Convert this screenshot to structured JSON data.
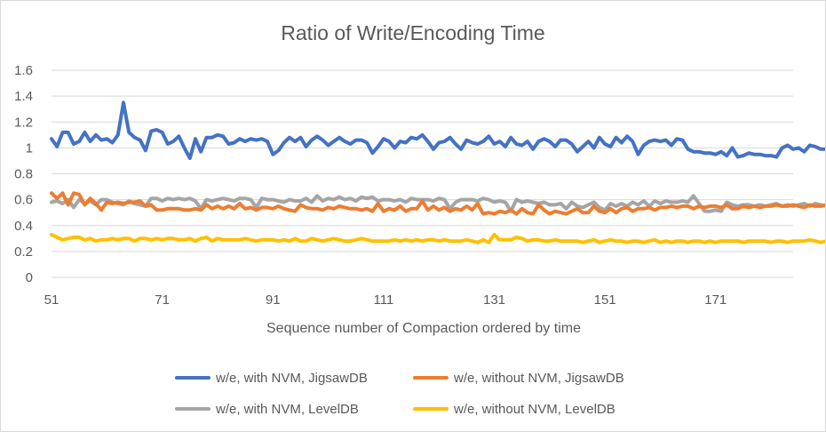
{
  "chart_data": {
    "type": "line",
    "title": "Ratio of Write/Encoding Time",
    "xlabel": "Sequence number of Compaction ordered by time",
    "ylabel": "",
    "x_start": 51,
    "x_end": 185,
    "xticks": [
      "51",
      "71",
      "91",
      "111",
      "131",
      "151",
      "171"
    ],
    "yticks": [
      "0",
      "0.2",
      "0.4",
      "0.6",
      "0.8",
      "1",
      "1.2",
      "1.4",
      "1.6"
    ],
    "ylim": [
      0,
      1.6
    ],
    "grid": true,
    "legend_position": "bottom",
    "series": [
      {
        "name": "w/e, with NVM, JigsawDB",
        "color": "#4472C4",
        "values": [
          1.07,
          1.01,
          1.12,
          1.12,
          1.03,
          1.05,
          1.12,
          1.05,
          1.1,
          1.06,
          1.07,
          1.04,
          1.1,
          1.35,
          1.12,
          1.08,
          1.06,
          0.98,
          1.13,
          1.14,
          1.12,
          1.03,
          1.05,
          1.09,
          1.0,
          0.92,
          1.07,
          0.97,
          1.08,
          1.08,
          1.1,
          1.09,
          1.03,
          1.04,
          1.07,
          1.05,
          1.07,
          1.06,
          1.07,
          1.05,
          0.95,
          0.98,
          1.04,
          1.08,
          1.05,
          1.08,
          1.01,
          1.06,
          1.09,
          1.06,
          1.02,
          1.05,
          1.08,
          1.05,
          1.03,
          1.06,
          1.06,
          1.04,
          0.96,
          1.01,
          1.07,
          1.05,
          1.0,
          1.05,
          1.04,
          1.08,
          1.07,
          1.1,
          1.05,
          0.99,
          1.04,
          1.05,
          1.08,
          1.03,
          0.99,
          1.06,
          1.04,
          1.03,
          1.05,
          1.09,
          1.03,
          1.05,
          1.01,
          1.08,
          1.03,
          1.02,
          1.05,
          0.99,
          1.05,
          1.07,
          1.05,
          1.01,
          1.06,
          1.06,
          1.03,
          0.97,
          1.01,
          1.05,
          1.0,
          1.08,
          1.03,
          1.01,
          1.08,
          1.04,
          1.09,
          1.05,
          0.95,
          1.02,
          1.05,
          1.06,
          1.05,
          1.06,
          1.02,
          1.07,
          1.06,
          0.99,
          0.97,
          0.97,
          0.96,
          0.96,
          0.95,
          0.97,
          0.94,
          1.0,
          0.93,
          0.94,
          0.96,
          0.95,
          0.95,
          0.94,
          0.94,
          0.93,
          1.0,
          1.02,
          0.99,
          1.0,
          0.97,
          1.02,
          1.01,
          0.99,
          0.99,
          0.96
        ]
      },
      {
        "name": "w/e, without NVM, JigsawDB",
        "color": "#ED7D31",
        "values": [
          0.65,
          0.61,
          0.65,
          0.56,
          0.65,
          0.64,
          0.56,
          0.61,
          0.57,
          0.52,
          0.58,
          0.57,
          0.58,
          0.57,
          0.58,
          0.58,
          0.59,
          0.55,
          0.56,
          0.52,
          0.52,
          0.53,
          0.53,
          0.53,
          0.52,
          0.52,
          0.53,
          0.52,
          0.56,
          0.53,
          0.55,
          0.53,
          0.55,
          0.53,
          0.57,
          0.53,
          0.54,
          0.52,
          0.54,
          0.54,
          0.53,
          0.55,
          0.53,
          0.52,
          0.51,
          0.56,
          0.54,
          0.53,
          0.53,
          0.52,
          0.54,
          0.53,
          0.55,
          0.54,
          0.53,
          0.53,
          0.52,
          0.53,
          0.51,
          0.57,
          0.51,
          0.53,
          0.52,
          0.55,
          0.51,
          0.53,
          0.53,
          0.59,
          0.52,
          0.55,
          0.52,
          0.54,
          0.51,
          0.53,
          0.52,
          0.55,
          0.52,
          0.57,
          0.49,
          0.5,
          0.49,
          0.51,
          0.5,
          0.52,
          0.49,
          0.53,
          0.5,
          0.49,
          0.56,
          0.52,
          0.49,
          0.51,
          0.5,
          0.49,
          0.51,
          0.53,
          0.5,
          0.5,
          0.55,
          0.51,
          0.5,
          0.53,
          0.5,
          0.53,
          0.54,
          0.51,
          0.53,
          0.53,
          0.54,
          0.52,
          0.54,
          0.54,
          0.55,
          0.54,
          0.55,
          0.55,
          0.53,
          0.55,
          0.54,
          0.55,
          0.55,
          0.54,
          0.56,
          0.53,
          0.53,
          0.55,
          0.54,
          0.55,
          0.54,
          0.55,
          0.55,
          0.56,
          0.55,
          0.55,
          0.56,
          0.55,
          0.54,
          0.56,
          0.55,
          0.55,
          0.56,
          0.55,
          0.54,
          0.55
        ]
      },
      {
        "name": "w/e, with NVM, LevelDB",
        "color": "#A5A5A5",
        "values": [
          0.58,
          0.59,
          0.57,
          0.6,
          0.54,
          0.6,
          0.57,
          0.59,
          0.56,
          0.6,
          0.6,
          0.58,
          0.57,
          0.56,
          0.59,
          0.57,
          0.56,
          0.55,
          0.61,
          0.61,
          0.59,
          0.61,
          0.6,
          0.61,
          0.6,
          0.61,
          0.59,
          0.53,
          0.6,
          0.59,
          0.6,
          0.61,
          0.6,
          0.59,
          0.61,
          0.61,
          0.6,
          0.54,
          0.61,
          0.6,
          0.6,
          0.59,
          0.58,
          0.6,
          0.59,
          0.59,
          0.61,
          0.58,
          0.63,
          0.59,
          0.61,
          0.6,
          0.62,
          0.6,
          0.61,
          0.59,
          0.62,
          0.61,
          0.62,
          0.59,
          0.6,
          0.6,
          0.59,
          0.6,
          0.58,
          0.61,
          0.6,
          0.6,
          0.6,
          0.59,
          0.61,
          0.6,
          0.53,
          0.58,
          0.6,
          0.6,
          0.6,
          0.59,
          0.61,
          0.6,
          0.58,
          0.59,
          0.58,
          0.51,
          0.6,
          0.58,
          0.59,
          0.58,
          0.57,
          0.58,
          0.56,
          0.56,
          0.57,
          0.53,
          0.58,
          0.55,
          0.54,
          0.56,
          0.58,
          0.54,
          0.52,
          0.57,
          0.55,
          0.57,
          0.55,
          0.58,
          0.56,
          0.59,
          0.55,
          0.59,
          0.57,
          0.59,
          0.58,
          0.58,
          0.59,
          0.58,
          0.63,
          0.57,
          0.51,
          0.51,
          0.52,
          0.51,
          0.58,
          0.56,
          0.55,
          0.56,
          0.56,
          0.55,
          0.56,
          0.55,
          0.56,
          0.57,
          0.55,
          0.56,
          0.55,
          0.56,
          0.57,
          0.55,
          0.57,
          0.56,
          0.55,
          0.56,
          0.52,
          0.54
        ]
      },
      {
        "name": "w/e, without NVM, LevelDB",
        "color": "#FFC000",
        "values": [
          0.33,
          0.31,
          0.29,
          0.3,
          0.31,
          0.31,
          0.29,
          0.3,
          0.28,
          0.29,
          0.29,
          0.3,
          0.29,
          0.3,
          0.3,
          0.28,
          0.3,
          0.3,
          0.29,
          0.3,
          0.29,
          0.3,
          0.3,
          0.29,
          0.29,
          0.3,
          0.28,
          0.3,
          0.31,
          0.28,
          0.3,
          0.29,
          0.29,
          0.29,
          0.29,
          0.3,
          0.29,
          0.28,
          0.29,
          0.29,
          0.29,
          0.28,
          0.29,
          0.28,
          0.3,
          0.28,
          0.28,
          0.3,
          0.29,
          0.28,
          0.29,
          0.3,
          0.29,
          0.28,
          0.28,
          0.29,
          0.3,
          0.29,
          0.28,
          0.28,
          0.28,
          0.28,
          0.29,
          0.28,
          0.29,
          0.28,
          0.29,
          0.28,
          0.29,
          0.29,
          0.28,
          0.29,
          0.28,
          0.28,
          0.28,
          0.29,
          0.28,
          0.27,
          0.29,
          0.27,
          0.33,
          0.29,
          0.29,
          0.29,
          0.31,
          0.3,
          0.28,
          0.29,
          0.29,
          0.28,
          0.28,
          0.29,
          0.28,
          0.28,
          0.28,
          0.28,
          0.27,
          0.28,
          0.29,
          0.27,
          0.28,
          0.29,
          0.28,
          0.28,
          0.27,
          0.28,
          0.28,
          0.27,
          0.28,
          0.29,
          0.27,
          0.28,
          0.27,
          0.28,
          0.28,
          0.27,
          0.28,
          0.28,
          0.27,
          0.28,
          0.27,
          0.28,
          0.28,
          0.28,
          0.28,
          0.27,
          0.28,
          0.28,
          0.28,
          0.28,
          0.27,
          0.28,
          0.28,
          0.27,
          0.28,
          0.28,
          0.28,
          0.29,
          0.28,
          0.27,
          0.28,
          0.28,
          0.27,
          0.26
        ]
      }
    ]
  }
}
